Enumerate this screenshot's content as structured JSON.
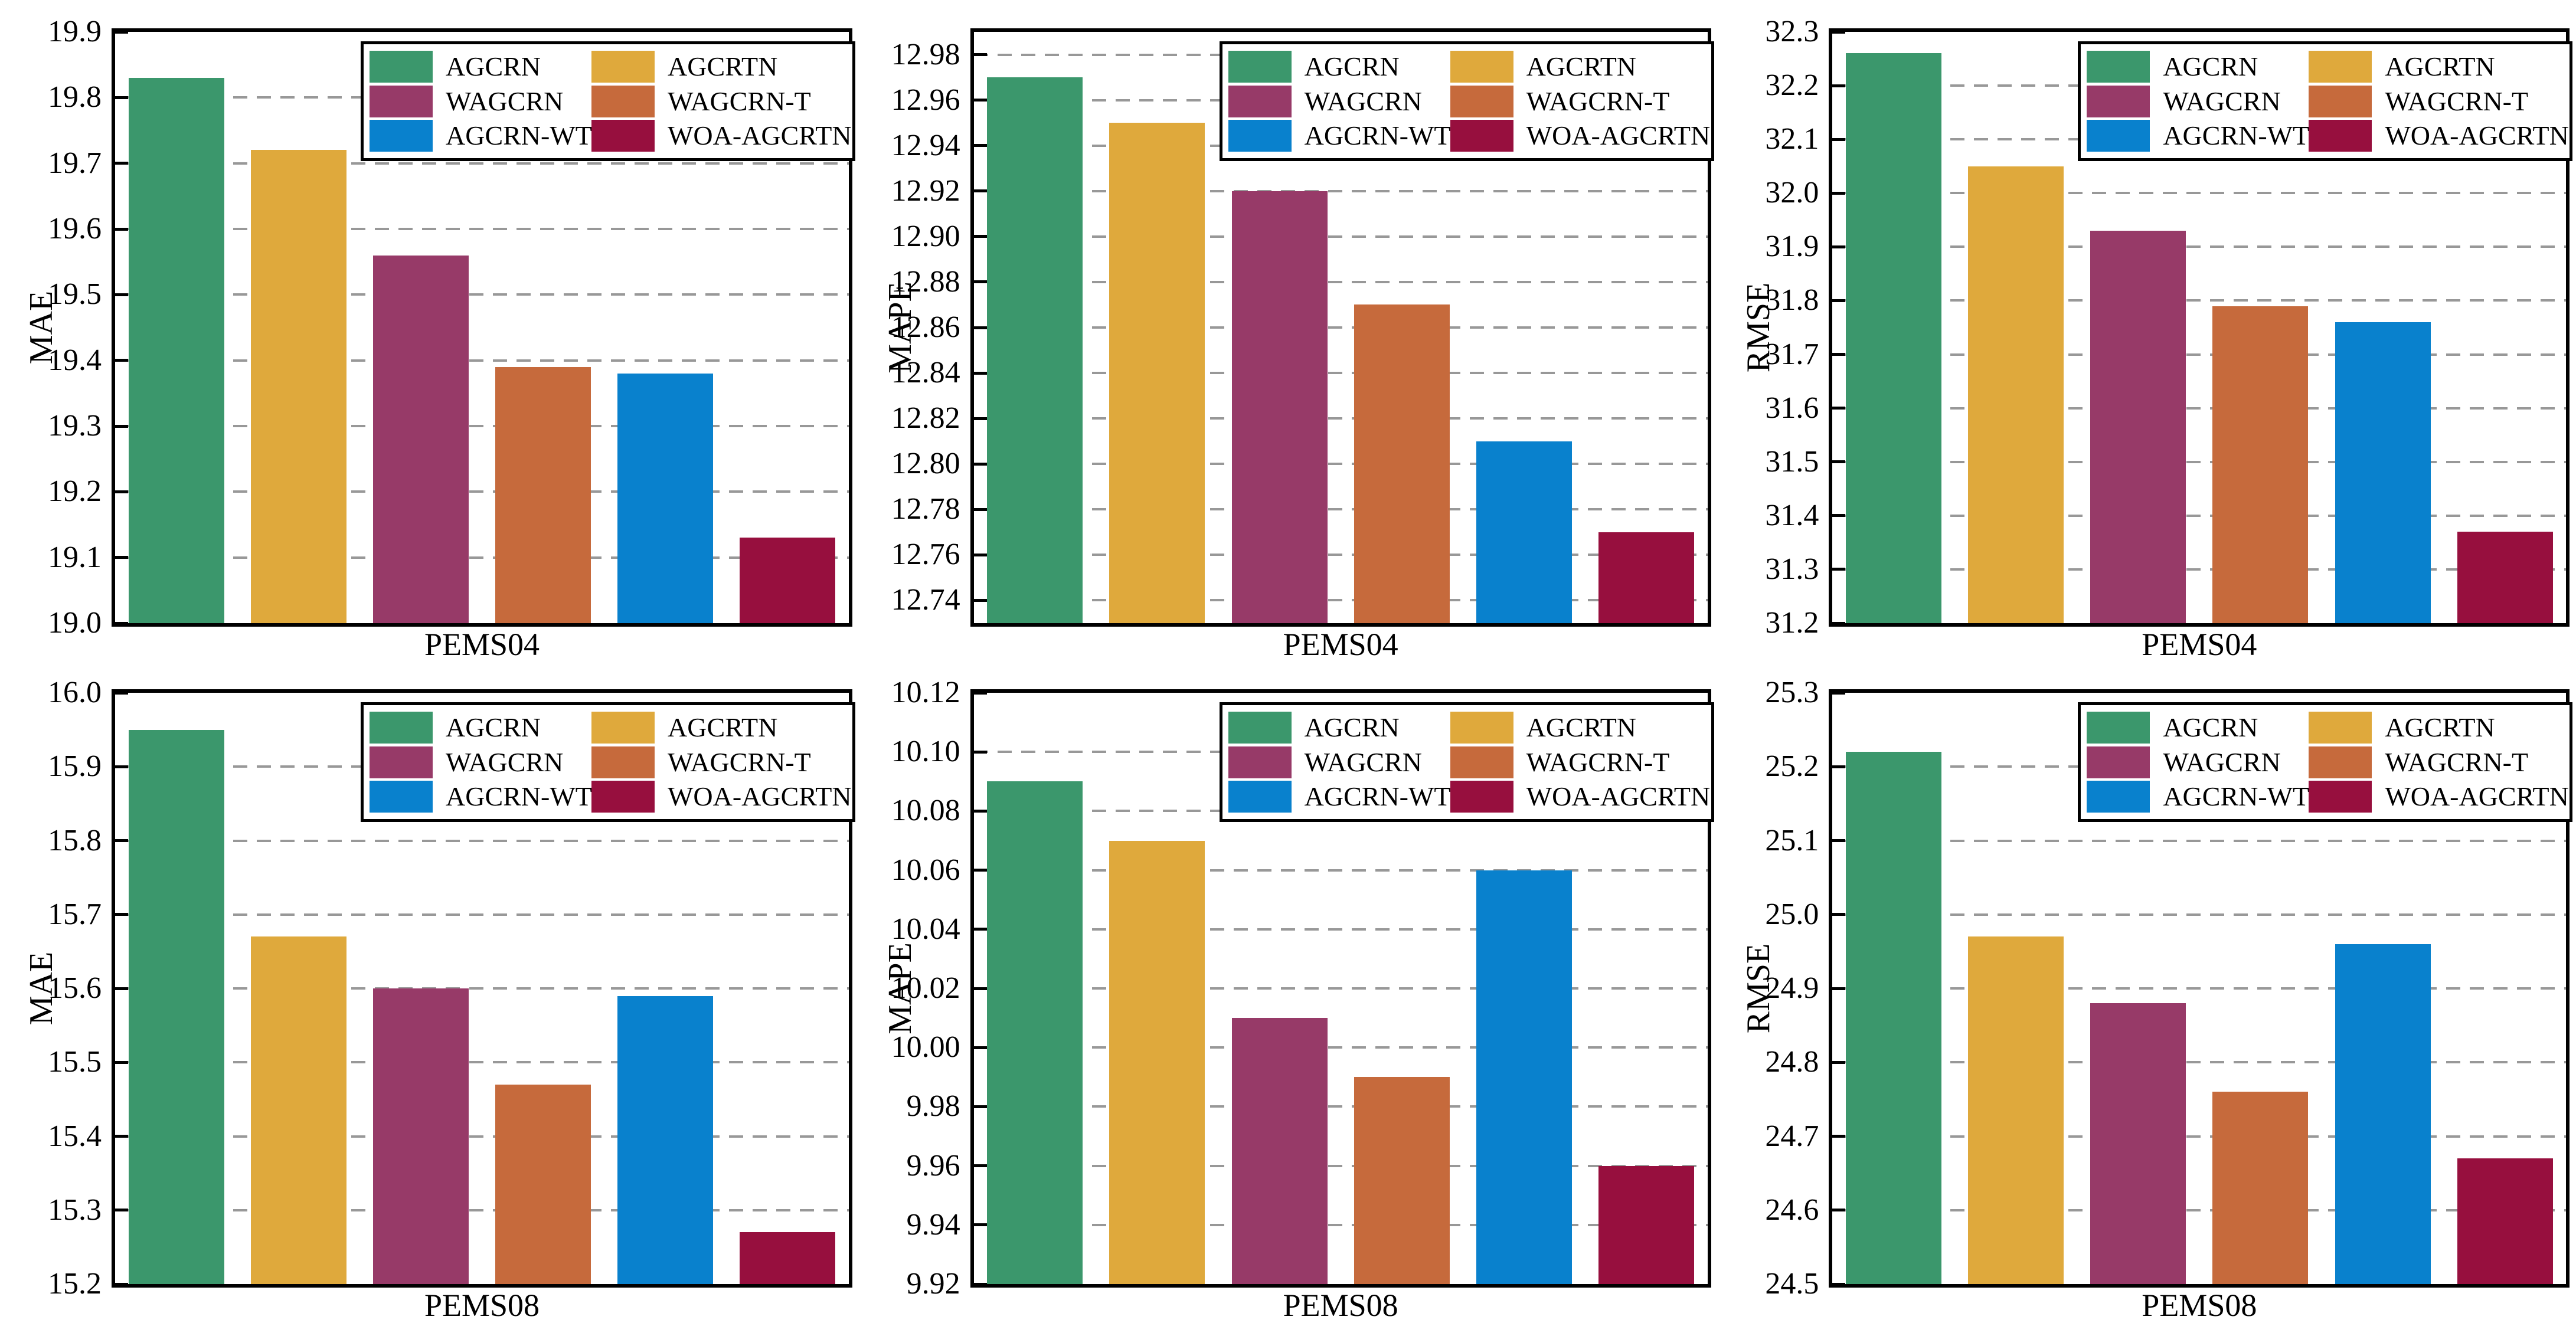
{
  "figure": {
    "description": "Six-panel bar chart figure comparing traffic forecasting models on PEMS04 and PEMS08 datasets",
    "background": "#ffffff",
    "grid_color": "#989898",
    "spine_color": "#000000",
    "text_color": "#000000"
  },
  "palette": {
    "AGCRN": "#3B976C",
    "AGCRTN": "#DFA93C",
    "WAGCRN": "#973A68",
    "WAGCRN-T": "#C66A3C",
    "AGCRN-WT": "#0981CD",
    "WOA-AGCRTN": "#970F3E"
  },
  "legend": {
    "entries": [
      {
        "label": "AGCRN",
        "color": "#3B976C"
      },
      {
        "label": "AGCRTN",
        "color": "#DFA93C"
      },
      {
        "label": "WAGCRN",
        "color": "#973A68"
      },
      {
        "label": "WAGCRN-T",
        "color": "#C66A3C"
      },
      {
        "label": "AGCRN-WT",
        "color": "#0981CD"
      },
      {
        "label": "WOA-AGCRTN",
        "color": "#970F3E"
      }
    ],
    "position": "upper right",
    "columns": 2
  },
  "chart_data": [
    {
      "type": "bar",
      "xlabel": "PEMS04",
      "ylabel": "MAE",
      "categories": [
        "AGCRN",
        "AGCRTN",
        "WAGCRN",
        "WAGCRN-T",
        "AGCRN-WT",
        "WOA-AGCRTN"
      ],
      "values": [
        19.83,
        19.72,
        19.56,
        19.39,
        19.38,
        19.13
      ],
      "ylim": [
        19.0,
        19.9
      ],
      "yticks": [
        19.0,
        19.1,
        19.2,
        19.3,
        19.4,
        19.5,
        19.6,
        19.7,
        19.8,
        19.9
      ],
      "ytick_labels": [
        "19.0",
        "19.1",
        "19.2",
        "19.3",
        "19.4",
        "19.5",
        "19.6",
        "19.7",
        "19.8",
        "19.9"
      ],
      "grid": true,
      "legend_position": "upper right"
    },
    {
      "type": "bar",
      "xlabel": "PEMS04",
      "ylabel": "MAPE",
      "categories": [
        "AGCRN",
        "AGCRTN",
        "WAGCRN",
        "WAGCRN-T",
        "AGCRN-WT",
        "WOA-AGCRTN"
      ],
      "values": [
        12.97,
        12.95,
        12.92,
        12.87,
        12.81,
        12.77
      ],
      "ylim": [
        12.73,
        12.99
      ],
      "yticks": [
        12.74,
        12.76,
        12.78,
        12.8,
        12.82,
        12.84,
        12.86,
        12.88,
        12.9,
        12.92,
        12.94,
        12.96,
        12.98
      ],
      "ytick_labels": [
        "12.74",
        "12.76",
        "12.78",
        "12.80",
        "12.82",
        "12.84",
        "12.86",
        "12.88",
        "12.90",
        "12.92",
        "12.94",
        "12.96",
        "12.98"
      ],
      "grid": true,
      "legend_position": "upper right"
    },
    {
      "type": "bar",
      "xlabel": "PEMS04",
      "ylabel": "RMSE",
      "categories": [
        "AGCRN",
        "AGCRTN",
        "WAGCRN",
        "WAGCRN-T",
        "AGCRN-WT",
        "WOA-AGCRTN"
      ],
      "values": [
        32.26,
        32.05,
        31.93,
        31.79,
        31.76,
        31.37
      ],
      "ylim": [
        31.2,
        32.3
      ],
      "yticks": [
        31.2,
        31.3,
        31.4,
        31.5,
        31.6,
        31.7,
        31.8,
        31.9,
        32.0,
        32.1,
        32.2,
        32.3
      ],
      "ytick_labels": [
        "31.2",
        "31.3",
        "31.4",
        "31.5",
        "31.6",
        "31.7",
        "31.8",
        "31.9",
        "32.0",
        "32.1",
        "32.2",
        "32.3"
      ],
      "grid": true,
      "legend_position": "upper right"
    },
    {
      "type": "bar",
      "xlabel": "PEMS08",
      "ylabel": "MAE",
      "categories": [
        "AGCRN",
        "AGCRTN",
        "WAGCRN",
        "WAGCRN-T",
        "AGCRN-WT",
        "WOA-AGCRTN"
      ],
      "values": [
        15.95,
        15.67,
        15.6,
        15.47,
        15.59,
        15.27
      ],
      "ylim": [
        15.2,
        16.0
      ],
      "yticks": [
        15.2,
        15.3,
        15.4,
        15.5,
        15.6,
        15.7,
        15.8,
        15.9,
        16.0
      ],
      "ytick_labels": [
        "15.2",
        "15.3",
        "15.4",
        "15.5",
        "15.6",
        "15.7",
        "15.8",
        "15.9",
        "16.0"
      ],
      "grid": true,
      "legend_position": "upper right"
    },
    {
      "type": "bar",
      "xlabel": "PEMS08",
      "ylabel": "MAPE",
      "categories": [
        "AGCRN",
        "AGCRTN",
        "WAGCRN",
        "WAGCRN-T",
        "AGCRN-WT",
        "WOA-AGCRTN"
      ],
      "values": [
        10.09,
        10.07,
        10.01,
        9.99,
        10.06,
        9.96
      ],
      "ylim": [
        9.92,
        10.12
      ],
      "yticks": [
        9.92,
        9.94,
        9.96,
        9.98,
        10.0,
        10.02,
        10.04,
        10.06,
        10.08,
        10.1,
        10.12
      ],
      "ytick_labels": [
        "9.92",
        "9.94",
        "9.96",
        "9.98",
        "10.00",
        "10.02",
        "10.04",
        "10.06",
        "10.08",
        "10.10",
        "10.12"
      ],
      "grid": true,
      "legend_position": "upper right"
    },
    {
      "type": "bar",
      "xlabel": "PEMS08",
      "ylabel": "RMSE",
      "categories": [
        "AGCRN",
        "AGCRTN",
        "WAGCRN",
        "WAGCRN-T",
        "AGCRN-WT",
        "WOA-AGCRTN"
      ],
      "values": [
        25.22,
        24.97,
        24.88,
        24.76,
        24.96,
        24.67
      ],
      "ylim": [
        24.5,
        25.3
      ],
      "yticks": [
        24.5,
        24.6,
        24.7,
        24.8,
        24.9,
        25.0,
        25.1,
        25.2,
        25.3
      ],
      "ytick_labels": [
        "24.5",
        "24.6",
        "24.7",
        "24.8",
        "24.9",
        "25.0",
        "25.1",
        "25.2",
        "25.3"
      ],
      "grid": true,
      "legend_position": "upper right"
    }
  ]
}
